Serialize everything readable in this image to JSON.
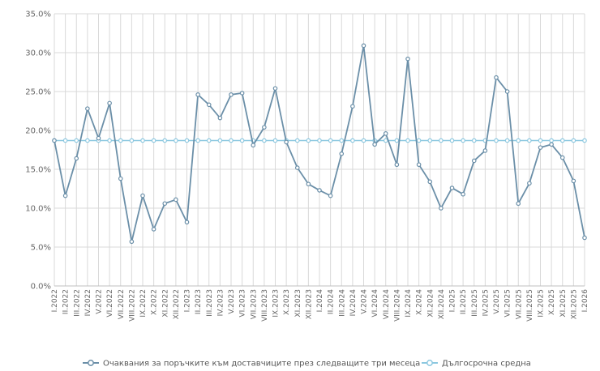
{
  "chart_data": {
    "type": "line",
    "categories": [
      "I.2022",
      "II.2022",
      "III.2022",
      "IV.2022",
      "V.2022",
      "VI.2022",
      "VII.2022",
      "VIII.2022",
      "IX.2022",
      "X.2022",
      "XI.2022",
      "XII.2022",
      "I.2023",
      "II.2023",
      "III.2023",
      "IV.2023",
      "V.2023",
      "VI.2023",
      "VII.2023",
      "VIII.2023",
      "IX.2023",
      "X.2023",
      "XI.2023",
      "XII.2023",
      "I.2024",
      "II.2024",
      "III.2024",
      "IV.2024",
      "V.2024",
      "VI.2024",
      "VII.2024",
      "VIII.2024",
      "IX.2024",
      "X.2024",
      "XI.2024",
      "XII.2024",
      "I.2025",
      "II.2025",
      "III.2025",
      "IV.2025",
      "V.2025",
      "VI.2025",
      "VII.2025",
      "VIII.2025",
      "IX.2025",
      "X.2025",
      "XI.2025",
      "XII.2025",
      "I.2026"
    ],
    "x_labels": [
      "I.2022",
      "II.2022",
      "III.2022",
      "IV.2022",
      "V.2022",
      "VI.2022",
      "VII.2022",
      "VIII.2022",
      "IX.2022",
      "X.2022",
      "XI.2022",
      "XII.2022",
      "I.2023",
      "II.2023",
      "III.2023",
      "IV.2023",
      "V.2023",
      "VI.2023",
      "VII.2023",
      "VIII.2023",
      "IX.2023",
      "X.2023",
      "XI.2023",
      "XII.2023",
      "I.2024",
      "II.2024",
      "III.2024",
      "IV.2024",
      "V.2024",
      "VI.2024",
      "VII.2024",
      "VIII.2024",
      "IX.2024",
      "X.2024",
      "XI.2024",
      "XII.2024",
      "I.2025",
      "II.2025",
      "III.2025",
      "IV.2025",
      "V.2025",
      "VI.2025",
      "VII.2025",
      "VIII.2025",
      "IX.2025",
      "X.2025",
      "XI.2025",
      "XII.2025",
      "I.2026"
    ],
    "series": [
      {
        "name": "Очаквания за поръчките към доставчиците през следващите три месеца",
        "color": "#6b8fa8",
        "values": [
          18.7,
          11.6,
          16.4,
          22.8,
          19.0,
          23.5,
          13.8,
          5.7,
          11.6,
          7.3,
          10.6,
          11.1,
          8.2,
          24.6,
          23.3,
          21.6,
          24.6,
          24.8,
          18.1,
          20.4,
          25.4,
          18.5,
          15.2,
          13.1,
          12.3,
          11.6,
          17.0,
          23.1,
          30.9,
          18.2,
          19.6,
          15.6,
          29.2,
          15.6,
          13.4,
          10.0,
          12.6,
          11.8,
          16.1,
          17.4,
          26.8,
          25.0,
          10.6,
          13.2,
          17.8,
          18.2,
          16.5,
          13.5,
          6.2
        ]
      },
      {
        "name": "Дългосрочна средна",
        "color": "#8cc8e0",
        "values": [
          18.7,
          18.7,
          18.7,
          18.7,
          18.7,
          18.7,
          18.7,
          18.7,
          18.7,
          18.7,
          18.7,
          18.7,
          18.7,
          18.7,
          18.7,
          18.7,
          18.7,
          18.7,
          18.7,
          18.7,
          18.7,
          18.7,
          18.7,
          18.7,
          18.7,
          18.7,
          18.7,
          18.7,
          18.7,
          18.7,
          18.7,
          18.7,
          18.7,
          18.7,
          18.7,
          18.7,
          18.7,
          18.7,
          18.7,
          18.7,
          18.7,
          18.7,
          18.7,
          18.7,
          18.7,
          18.7,
          18.7,
          18.7,
          18.7
        ]
      }
    ],
    "ylim": [
      0,
      35
    ],
    "y_ticks": [
      0,
      5,
      10,
      15,
      20,
      25,
      30,
      35
    ],
    "y_tick_labels": [
      "0.0%",
      "5.0%",
      "10.0%",
      "15.0%",
      "20.0%",
      "25.0%",
      "30.0%",
      "35.0%"
    ],
    "grid": true,
    "legend_position": "bottom"
  }
}
